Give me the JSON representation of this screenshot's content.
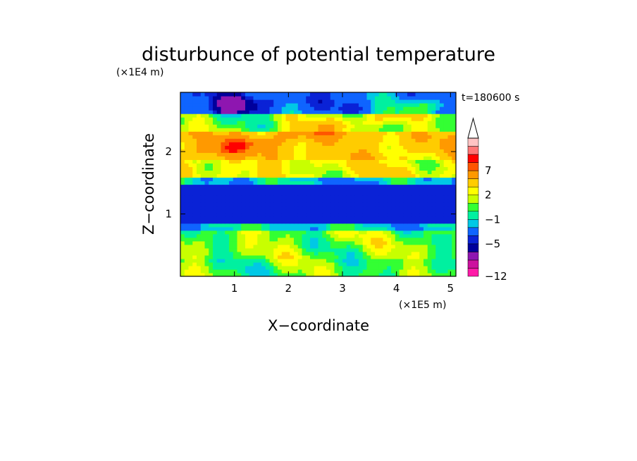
{
  "chart_data": {
    "type": "heatmap",
    "title": "disturbunce of potential temperature",
    "time_label": "t=180600 s",
    "xlabel": "X−coordinate",
    "ylabel": "Z−coordinate",
    "x_scale_label": "(×1E5 m)",
    "y_scale_label": "(×1E4 m)",
    "x_ticks": [
      "1",
      "2",
      "3",
      "4",
      "5"
    ],
    "y_ticks": [
      "1",
      "2"
    ],
    "xlim": [
      0,
      5.1
    ],
    "ylim": [
      0,
      2.95
    ],
    "colorbar": {
      "levels": [
        -12,
        -10,
        -8,
        -6,
        -5,
        -4,
        -2,
        -1,
        0,
        1,
        2,
        3,
        5,
        7,
        8,
        9,
        11
      ],
      "tick_labels": [
        "−12",
        "−5",
        "−1",
        "2",
        "7"
      ],
      "colors": [
        "#ff1aa8",
        "#cc119e",
        "#8e16b0",
        "#00009c",
        "#0a22d6",
        "#0f64ff",
        "#00c8e6",
        "#00f0a0",
        "#33ff33",
        "#c8ff00",
        "#ffff00",
        "#ffcc00",
        "#ff9900",
        "#ff5500",
        "#ff0000",
        "#ff7777",
        "#ffc4c4"
      ],
      "extend_max": true
    },
    "field_description_rows": [
      {
        "z_range": [
          0.0,
          0.3
        ],
        "value": 0.5
      },
      {
        "z_range": [
          0.3,
          0.75
        ],
        "value": 1.0
      },
      {
        "z_range": [
          0.75,
          0.85
        ],
        "value": -1.0
      },
      {
        "z_range": [
          0.85,
          1.45
        ],
        "value": -4.5
      },
      {
        "z_range": [
          1.45,
          1.6
        ],
        "value": -1.5
      },
      {
        "z_range": [
          1.6,
          1.9
        ],
        "value": 2.5
      },
      {
        "z_range": [
          1.9,
          2.3
        ],
        "value": 4.0
      },
      {
        "z_range": [
          2.3,
          2.6
        ],
        "value": 1.0
      },
      {
        "z_range": [
          2.6,
          2.95
        ],
        "value": -3.0
      }
    ]
  }
}
